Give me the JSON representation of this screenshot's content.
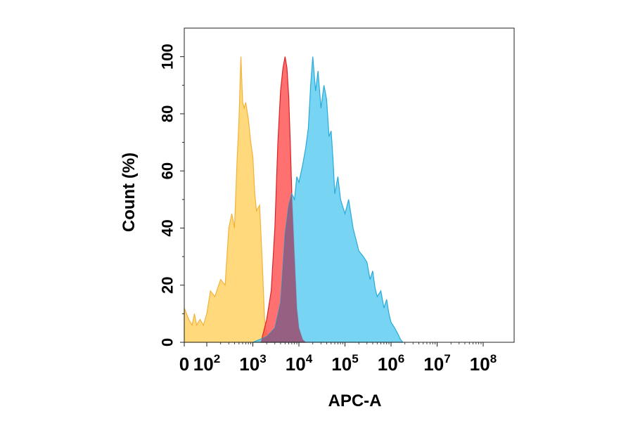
{
  "chart_data": {
    "type": "area",
    "title": "",
    "xlabel": "APC-A",
    "ylabel": "Count (%)",
    "xscale": "biexponential (0, then log 10^2 – 10^8)",
    "xlim": [
      0,
      100000000
    ],
    "ylim": [
      0,
      110
    ],
    "grid": false,
    "legend": "none",
    "y_ticks": [
      "0",
      "20",
      "40",
      "60",
      "80",
      "100"
    ],
    "x_ticks": [
      {
        "base": "0",
        "exp": ""
      },
      {
        "base": "10",
        "exp": "2"
      },
      {
        "base": "10",
        "exp": "3"
      },
      {
        "base": "10",
        "exp": "4"
      },
      {
        "base": "10",
        "exp": "5"
      },
      {
        "base": "10",
        "exp": "6"
      },
      {
        "base": "10",
        "exp": "7"
      },
      {
        "base": "10",
        "exp": "8"
      }
    ],
    "series": [
      {
        "fill": "#FFD264",
        "stroke": "#F2B23A",
        "points": [
          [
            0,
            12
          ],
          [
            20,
            8
          ],
          [
            35,
            6
          ],
          [
            45,
            10
          ],
          [
            55,
            6
          ],
          [
            70,
            8
          ],
          [
            85,
            6
          ],
          [
            100,
            10
          ],
          [
            120,
            18
          ],
          [
            150,
            16
          ],
          [
            200,
            22
          ],
          [
            250,
            20
          ],
          [
            300,
            40
          ],
          [
            350,
            45
          ],
          [
            400,
            40
          ],
          [
            450,
            62
          ],
          [
            500,
            78
          ],
          [
            550,
            100
          ],
          [
            600,
            84
          ],
          [
            650,
            82
          ],
          [
            700,
            84
          ],
          [
            800,
            78
          ],
          [
            900,
            70
          ],
          [
            1000,
            65
          ],
          [
            1100,
            52
          ],
          [
            1200,
            46
          ],
          [
            1400,
            48
          ],
          [
            1600,
            28
          ],
          [
            1800,
            8
          ],
          [
            2000,
            3
          ],
          [
            2500,
            1
          ],
          [
            3000,
            0
          ]
        ]
      },
      {
        "fill": "#FF5050",
        "stroke": "#E02020",
        "points": [
          [
            1500,
            0
          ],
          [
            2000,
            8
          ],
          [
            2500,
            18
          ],
          [
            3000,
            40
          ],
          [
            3500,
            70
          ],
          [
            4000,
            88
          ],
          [
            4500,
            96
          ],
          [
            5000,
            100
          ],
          [
            5500,
            96
          ],
          [
            6000,
            86
          ],
          [
            6500,
            70
          ],
          [
            7000,
            52
          ],
          [
            8000,
            30
          ],
          [
            9000,
            12
          ],
          [
            10000,
            5
          ],
          [
            12000,
            1
          ],
          [
            14000,
            0
          ]
        ]
      },
      {
        "fill": "#5ACBF0",
        "stroke": "#2AAAD8",
        "points": [
          [
            1000,
            0
          ],
          [
            2000,
            2
          ],
          [
            3000,
            5
          ],
          [
            4000,
            14
          ],
          [
            5000,
            38
          ],
          [
            6000,
            48
          ],
          [
            7000,
            52
          ],
          [
            8000,
            50
          ],
          [
            9000,
            58
          ],
          [
            10000,
            56
          ],
          [
            12000,
            62
          ],
          [
            14000,
            68
          ],
          [
            16000,
            75
          ],
          [
            18000,
            90
          ],
          [
            20000,
            100
          ],
          [
            23000,
            88
          ],
          [
            26000,
            95
          ],
          [
            30000,
            82
          ],
          [
            35000,
            90
          ],
          [
            40000,
            85
          ],
          [
            45000,
            72
          ],
          [
            50000,
            74
          ],
          [
            55000,
            64
          ],
          [
            60000,
            52
          ],
          [
            70000,
            58
          ],
          [
            80000,
            50
          ],
          [
            100000,
            45
          ],
          [
            120000,
            50
          ],
          [
            150000,
            40
          ],
          [
            200000,
            32
          ],
          [
            250000,
            30
          ],
          [
            300000,
            28
          ],
          [
            350000,
            22
          ],
          [
            400000,
            25
          ],
          [
            450000,
            19
          ],
          [
            500000,
            16
          ],
          [
            600000,
            18
          ],
          [
            700000,
            12
          ],
          [
            800000,
            15
          ],
          [
            900000,
            10
          ],
          [
            1000000,
            7
          ],
          [
            1200000,
            5
          ],
          [
            1400000,
            3
          ],
          [
            1600000,
            1
          ],
          [
            1800000,
            0
          ]
        ]
      }
    ],
    "overlap_fill": "#9C4A6A"
  }
}
